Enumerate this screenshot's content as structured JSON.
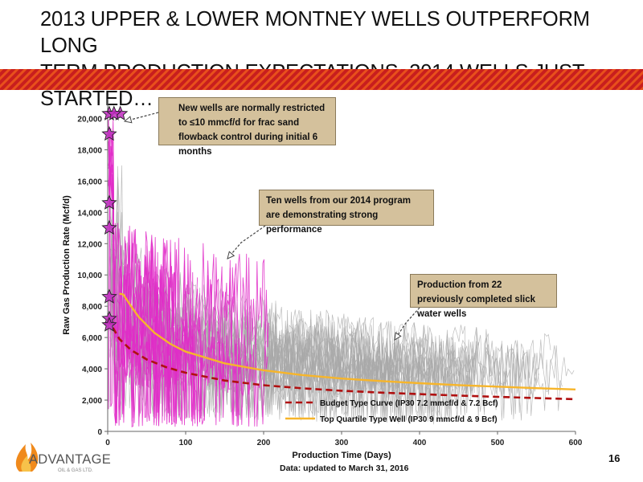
{
  "slide": {
    "title_line1": "2013 UPPER & LOWER MONTNEY WELLS OUTPERFORM LONG",
    "title_line2": "TERM PRODUCTION EXPECTATIONS. 2014 WELLS JUST STARTED…",
    "footnote": "Data: updated to March 31, 2016",
    "page_number": "16",
    "logo_text": "ADVANTAGE",
    "logo_sub": "OIL & GAS LTD.",
    "stripe_colors": [
      "#e8501c",
      "#c81e1e"
    ]
  },
  "callouts": {
    "new_wells": "New wells are normally restricted to ≤10 mmcf/d for frac sand flowback control during initial 6 months",
    "ten_wells": "Ten wells from our 2014 program are demonstrating strong performance",
    "slick_water": "Production from 22 previously completed slick water wells"
  },
  "chart_data": {
    "type": "line",
    "xlabel": "Production Time (Days)",
    "ylabel": "Raw Gas Production Rate (Mcf/d)",
    "xlim": [
      0,
      600
    ],
    "ylim": [
      0,
      21000
    ],
    "x_ticks": [
      0,
      100,
      200,
      300,
      400,
      500,
      600
    ],
    "x_tick_labels": [
      "0",
      "100",
      "200",
      "300",
      "400",
      "500",
      "600"
    ],
    "y_ticks": [
      0,
      2000,
      4000,
      6000,
      8000,
      10000,
      12000,
      14000,
      16000,
      18000,
      20000
    ],
    "y_tick_labels": [
      "0",
      "2,000",
      "4,000",
      "6,000",
      "8,000",
      "10,000",
      "12,000",
      "14,000",
      "16,000",
      "18,000",
      "20,000"
    ],
    "legend_position": "bottom-right",
    "series": [
      {
        "name": "Budget Type Curve (IP30 7.2 mmcf/d & 7.2 Bcf)",
        "color": "#b01010",
        "style": "dashed",
        "x": [
          0,
          15,
          30,
          50,
          75,
          100,
          150,
          200,
          250,
          300,
          350,
          400,
          450,
          500,
          550,
          600
        ],
        "y": [
          7200,
          5900,
          5200,
          4600,
          4100,
          3750,
          3250,
          2950,
          2750,
          2600,
          2480,
          2380,
          2290,
          2210,
          2130,
          2060
        ]
      },
      {
        "name": "Top Quartile Type Well (IP30 9 mmcf/d & 9 Bcf)",
        "color": "#f7b52a",
        "style": "solid",
        "x": [
          15,
          20,
          30,
          40,
          60,
          80,
          100,
          150,
          200,
          250,
          300,
          350,
          400,
          450,
          500,
          550,
          600
        ],
        "y": [
          8800,
          8750,
          8000,
          7300,
          6300,
          5600,
          5100,
          4350,
          3900,
          3600,
          3380,
          3220,
          3080,
          2960,
          2860,
          2760,
          2680
        ]
      }
    ],
    "star_markers": {
      "x": [
        2,
        12,
        2,
        2,
        2,
        2,
        2,
        2
      ],
      "y": [
        20300,
        20300,
        19000,
        14600,
        13000,
        8600,
        7200,
        6800
      ]
    }
  }
}
